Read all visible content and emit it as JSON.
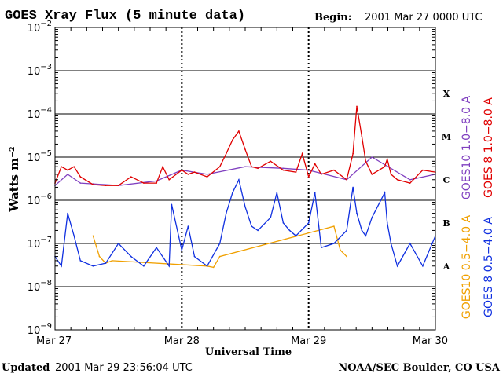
{
  "header": {
    "title": "GOES Xray Flux (5 minute data)",
    "begin_label": "Begin:",
    "begin_value": "2001 Mar 27 0000 UTC"
  },
  "footer": {
    "updated_label": "Updated",
    "updated_value": "2001 Mar 29 23:56:04 UTC",
    "credit": "NOAA/SEC Boulder, CO USA"
  },
  "colors": {
    "goes10_long": "#8040c0",
    "goes8_long": "#e00000",
    "goes10_short": "#f0a000",
    "goes8_short": "#1030e0",
    "grid": "#000000"
  },
  "chart_data": {
    "type": "line",
    "title": "GOES Xray Flux (5 minute data)",
    "xlabel": "Universal Time",
    "ylabel": "Watts m⁻²",
    "yscale": "log",
    "ylim": [
      1e-09,
      0.01
    ],
    "xlim": [
      0,
      3
    ],
    "x_ticks": [
      "Mar 27",
      "Mar 28",
      "Mar 29",
      "Mar 30"
    ],
    "y_ticks": [
      {
        "base": "10",
        "exp": "−9"
      },
      {
        "base": "10",
        "exp": "−8"
      },
      {
        "base": "10",
        "exp": "−7"
      },
      {
        "base": "10",
        "exp": "−6"
      },
      {
        "base": "10",
        "exp": "−5"
      },
      {
        "base": "10",
        "exp": "−4"
      },
      {
        "base": "10",
        "exp": "−3"
      },
      {
        "base": "10",
        "exp": "−2"
      }
    ],
    "flare_classes": [
      {
        "label": "A",
        "flux": 3e-08
      },
      {
        "label": "B",
        "flux": 3e-07
      },
      {
        "label": "C",
        "flux": 3e-06
      },
      {
        "label": "M",
        "flux": 3e-05
      },
      {
        "label": "X",
        "flux": 0.0003
      }
    ],
    "legend_placement": "right",
    "series": [
      {
        "name": "GOES10 1.0−8.0 A",
        "color": "#8040c0",
        "x": [
          0,
          0.1,
          0.2,
          0.3,
          0.5,
          0.8,
          1.0,
          1.2,
          1.5,
          1.8,
          2.0,
          2.3,
          2.5,
          2.8,
          3.0
        ],
        "y": [
          2.2e-06,
          4e-06,
          2.5e-06,
          2.4e-06,
          2.2e-06,
          2.8e-06,
          5e-06,
          4e-06,
          6e-06,
          5.5e-06,
          5e-06,
          3e-06,
          1e-05,
          3e-06,
          4e-06
        ]
      },
      {
        "name": "GOES 8 1.0−8.0 A",
        "color": "#e00000",
        "x": [
          0,
          0.05,
          0.1,
          0.15,
          0.2,
          0.3,
          0.4,
          0.5,
          0.6,
          0.7,
          0.8,
          0.85,
          0.9,
          1.0,
          1.05,
          1.1,
          1.2,
          1.3,
          1.35,
          1.4,
          1.45,
          1.5,
          1.55,
          1.6,
          1.7,
          1.8,
          1.9,
          1.95,
          2.0,
          2.05,
          2.1,
          2.2,
          2.3,
          2.35,
          2.38,
          2.42,
          2.45,
          2.5,
          2.6,
          2.62,
          2.65,
          2.7,
          2.8,
          2.9,
          3.0
        ],
        "y": [
          2.5e-06,
          6e-06,
          5e-06,
          6e-06,
          3.5e-06,
          2.3e-06,
          2.2e-06,
          2.2e-06,
          3.5e-06,
          2.5e-06,
          2.5e-06,
          6e-06,
          3e-06,
          5e-06,
          4e-06,
          4.5e-06,
          3.5e-06,
          6e-06,
          1.2e-05,
          2.5e-05,
          4e-05,
          1.5e-05,
          6e-06,
          5.5e-06,
          8e-06,
          5e-06,
          4.5e-06,
          1.2e-05,
          3.5e-06,
          7e-06,
          4e-06,
          5e-06,
          3e-06,
          1.2e-05,
          0.00015,
          3e-05,
          8e-06,
          4e-06,
          6e-06,
          9e-06,
          4e-06,
          3e-06,
          2.5e-06,
          5e-06,
          4.5e-06
        ]
      },
      {
        "name": "GOES10 0.5−4.0 A",
        "color": "#f0a000",
        "x": [
          0.3,
          0.35,
          0.4,
          0.45,
          1.2,
          1.25,
          1.3,
          2.2,
          2.25,
          2.3
        ],
        "y": [
          1.5e-07,
          5e-08,
          3.5e-08,
          4e-08,
          3e-08,
          2.8e-08,
          5e-08,
          2.5e-07,
          7e-08,
          5e-08
        ]
      },
      {
        "name": "GOES 8 0.5−4.0 A",
        "color": "#1030e0",
        "x": [
          0,
          0.05,
          0.1,
          0.15,
          0.2,
          0.3,
          0.4,
          0.5,
          0.6,
          0.7,
          0.8,
          0.9,
          0.92,
          1.0,
          1.05,
          1.1,
          1.2,
          1.3,
          1.35,
          1.4,
          1.45,
          1.5,
          1.55,
          1.6,
          1.7,
          1.75,
          1.8,
          1.85,
          1.9,
          2.0,
          2.05,
          2.1,
          2.2,
          2.3,
          2.35,
          2.38,
          2.42,
          2.45,
          2.5,
          2.6,
          2.62,
          2.65,
          2.7,
          2.8,
          2.9,
          3.0
        ],
        "y": [
          5e-08,
          3e-08,
          5e-07,
          1.5e-07,
          4e-08,
          3e-08,
          3.5e-08,
          1e-07,
          5e-08,
          3e-08,
          8e-08,
          3e-08,
          8e-07,
          7e-08,
          2.5e-07,
          5e-08,
          3e-08,
          1e-07,
          5e-07,
          1.5e-06,
          3e-06,
          7e-07,
          2.5e-07,
          2e-07,
          4e-07,
          1.5e-06,
          3e-07,
          2e-07,
          1.5e-07,
          3e-07,
          1.5e-06,
          8e-08,
          1e-07,
          2e-07,
          2e-06,
          5e-07,
          2e-07,
          1.5e-07,
          4e-07,
          1.5e-06,
          3e-07,
          1e-07,
          3e-08,
          1e-07,
          3e-08,
          1.5e-07
        ]
      }
    ]
  }
}
